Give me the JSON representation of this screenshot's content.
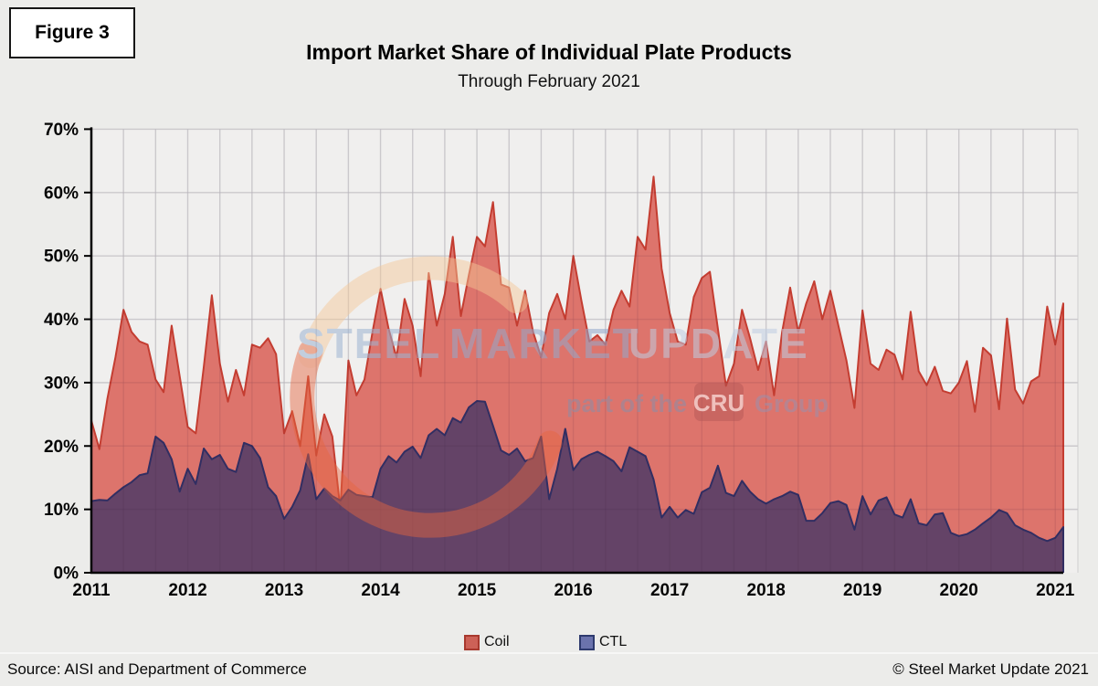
{
  "figure_label": "Figure 3",
  "title": "Import Market Share of Individual Plate Products",
  "subtitle": "Through February 2021",
  "watermark": {
    "brand_word_1": "STEEL",
    "brand_word_2": "MARKET",
    "brand_word_3": "UPDATE",
    "tagline_prefix": "part of the",
    "tagline_box": "CRU",
    "tagline_suffix": "Group"
  },
  "legend": [
    {
      "label": "Coil",
      "fill": "#cd6157",
      "border": "#a8392e"
    },
    {
      "label": "CTL",
      "fill": "#6b73ad",
      "border": "#2e3a6e"
    }
  ],
  "footer": {
    "source": "Source: AISI and Department of Commerce",
    "copyright": "© Steel Market Update 2021"
  },
  "chart_data": {
    "type": "area",
    "overlay": true,
    "interval": "monthly",
    "x_start": "2011-01",
    "x_end": "2021-02",
    "x_tick_labels": [
      "2011",
      "2012",
      "2013",
      "2014",
      "2015",
      "2016",
      "2017",
      "2018",
      "2019",
      "2020",
      "2021"
    ],
    "y_tick_labels": [
      "0%",
      "10%",
      "20%",
      "30%",
      "40%",
      "50%",
      "60%",
      "70%"
    ],
    "ylim": [
      0,
      70
    ],
    "grid": true,
    "legend_position": "bottom",
    "colors": {
      "plot_background": "#f0efee",
      "gridline": "#d8d8d8",
      "axis": "#000000"
    },
    "series": [
      {
        "name": "Coil",
        "fill_color": "#d9635a",
        "line_color": "#c43d31",
        "values": [
          24,
          19.5,
          27.5,
          34,
          41.5,
          38,
          36.5,
          36,
          30.5,
          28.5,
          39,
          31,
          23,
          22,
          32.5,
          43.8,
          33,
          27,
          32,
          28,
          36,
          35.5,
          37,
          34.5,
          22,
          25.5,
          20,
          31,
          18.5,
          25,
          21.5,
          10,
          33.5,
          28,
          30.5,
          38,
          44.8,
          38.5,
          34,
          43.2,
          39,
          31,
          47.3,
          39,
          44,
          53,
          40.5,
          47,
          53,
          51.5,
          58.5,
          45.5,
          45,
          39,
          44.5,
          38,
          34,
          41,
          44,
          40,
          50,
          43,
          36.5,
          37.5,
          36,
          41.5,
          44.5,
          42,
          53,
          51,
          62.5,
          48,
          41,
          36.5,
          36,
          43.5,
          46.5,
          47.5,
          38.5,
          29.5,
          33,
          41.5,
          37,
          32,
          36.5,
          28,
          38,
          45,
          38,
          42.5,
          46,
          40,
          44.5,
          39,
          33.5,
          26,
          41.4,
          33,
          32,
          35.2,
          34.4,
          30.5,
          41.2,
          31.8,
          29.6,
          32.5,
          28.7,
          28.3,
          30,
          33.4,
          25.4,
          35.5,
          34.3,
          25.8,
          40.1,
          28.9,
          26.7,
          30.2,
          31,
          42,
          36,
          42.5
        ]
      },
      {
        "name": "CTL",
        "fill_color": "#5a3f66",
        "line_color": "#312e62",
        "values": [
          11.3,
          11.5,
          11.4,
          12.5,
          13.5,
          14.3,
          15.4,
          15.7,
          21.5,
          20.5,
          17.9,
          12.8,
          16.4,
          14,
          19.6,
          17.9,
          18.6,
          16.4,
          15.9,
          20.5,
          20,
          18.1,
          13.5,
          12.1,
          8.5,
          10.4,
          13,
          18.7,
          11.6,
          13.3,
          12.1,
          11.4,
          13.1,
          12.3,
          12.1,
          11.9,
          16.4,
          18.4,
          17.4,
          19.1,
          19.9,
          18.1,
          21.7,
          22.7,
          21.7,
          24.4,
          23.7,
          26.1,
          27.1,
          27,
          23.2,
          19.3,
          18.6,
          19.6,
          17.6,
          18.1,
          21.5,
          11.6,
          16.4,
          22.7,
          16.2,
          17.9,
          18.6,
          19.1,
          18.4,
          17.6,
          16,
          19.8,
          19.1,
          18.4,
          14.7,
          8.7,
          10.4,
          8.7,
          9.9,
          9.3,
          12.7,
          13.4,
          16.9,
          12.6,
          12.1,
          14.5,
          12.8,
          11.6,
          10.9,
          11.6,
          12.1,
          12.8,
          12.3,
          8.2,
          8.2,
          9.4,
          11,
          11.3,
          10.7,
          6.8,
          12.1,
          9.2,
          11.4,
          11.9,
          9.2,
          8.7,
          11.6,
          7.8,
          7.5,
          9.2,
          9.4,
          6.3,
          5.8,
          6.1,
          6.8,
          7.8,
          8.7,
          9.9,
          9.4,
          7.5,
          6.8,
          6.3,
          5.5,
          5,
          5.5,
          7.2
        ]
      }
    ]
  }
}
